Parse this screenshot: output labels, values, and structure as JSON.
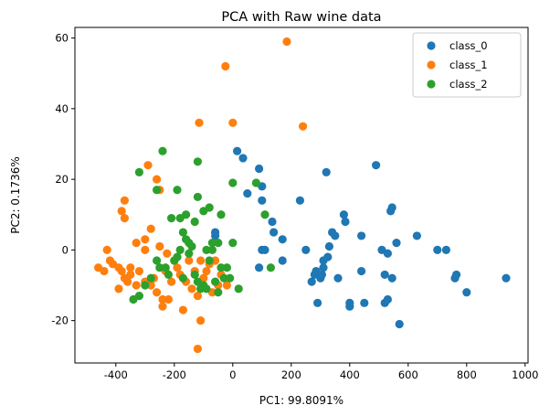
{
  "chart_data": {
    "type": "scatter",
    "title": "PCA with Raw wine data",
    "xlabel": "PC1: 99.8091%",
    "ylabel": "PC2: 0.1736%",
    "xlim": [
      -540,
      1010
    ],
    "ylim": [
      -32,
      63
    ],
    "xticks": [
      -400,
      -200,
      0,
      200,
      400,
      600,
      800,
      1000
    ],
    "yticks": [
      -20,
      0,
      20,
      40,
      60
    ],
    "grid": false,
    "legend": "top-right",
    "series": [
      {
        "name": "class_0",
        "color": "#1f77b4",
        "points": [
          [
            15,
            28
          ],
          [
            35,
            26
          ],
          [
            50,
            16
          ],
          [
            90,
            23
          ],
          [
            100,
            18
          ],
          [
            100,
            14
          ],
          [
            135,
            8
          ],
          [
            140,
            5
          ],
          [
            170,
            3
          ],
          [
            170,
            -3
          ],
          [
            230,
            14
          ],
          [
            250,
            0
          ],
          [
            270,
            -9
          ],
          [
            280,
            -7
          ],
          [
            285,
            -6
          ],
          [
            290,
            -15
          ],
          [
            300,
            -8
          ],
          [
            305,
            -7
          ],
          [
            310,
            -3
          ],
          [
            310,
            -5
          ],
          [
            320,
            22
          ],
          [
            325,
            -2
          ],
          [
            330,
            1
          ],
          [
            340,
            5
          ],
          [
            350,
            4
          ],
          [
            360,
            -8
          ],
          [
            380,
            10
          ],
          [
            385,
            8
          ],
          [
            400,
            -15
          ],
          [
            400,
            -16
          ],
          [
            440,
            4
          ],
          [
            440,
            -6
          ],
          [
            450,
            -15
          ],
          [
            490,
            24
          ],
          [
            510,
            0
          ],
          [
            520,
            -7
          ],
          [
            520,
            -15
          ],
          [
            530,
            -1
          ],
          [
            530,
            -14
          ],
          [
            540,
            11
          ],
          [
            545,
            12
          ],
          [
            545,
            -8
          ],
          [
            560,
            2
          ],
          [
            570,
            -21
          ],
          [
            630,
            4
          ],
          [
            700,
            0
          ],
          [
            730,
            0
          ],
          [
            760,
            -8
          ],
          [
            765,
            -7
          ],
          [
            800,
            -12
          ],
          [
            935,
            -8
          ],
          [
            90,
            -5
          ],
          [
            100,
            0
          ],
          [
            -60,
            5
          ],
          [
            -60,
            4
          ],
          [
            110,
            0
          ]
        ]
      },
      {
        "name": "class_1",
        "color": "#ff7f0e",
        "points": [
          [
            185,
            59
          ],
          [
            -25,
            52
          ],
          [
            240,
            35
          ],
          [
            0,
            36
          ],
          [
            -115,
            36
          ],
          [
            -370,
            14
          ],
          [
            -380,
            11
          ],
          [
            -370,
            9
          ],
          [
            -290,
            24
          ],
          [
            -260,
            20
          ],
          [
            -250,
            17
          ],
          [
            -330,
            2
          ],
          [
            -300,
            3
          ],
          [
            -280,
            6
          ],
          [
            -300,
            0
          ],
          [
            -250,
            1
          ],
          [
            -225,
            -1
          ],
          [
            -430,
            0
          ],
          [
            -420,
            -3
          ],
          [
            -460,
            -5
          ],
          [
            -410,
            -4
          ],
          [
            -440,
            -6
          ],
          [
            -390,
            -5
          ],
          [
            -380,
            -6
          ],
          [
            -370,
            -8
          ],
          [
            -350,
            -7
          ],
          [
            -320,
            -6
          ],
          [
            -300,
            -9
          ],
          [
            -280,
            -10
          ],
          [
            -260,
            -12
          ],
          [
            -240,
            -14
          ],
          [
            -240,
            -16
          ],
          [
            -220,
            -14
          ],
          [
            -200,
            -3
          ],
          [
            -190,
            -5
          ],
          [
            -180,
            -7
          ],
          [
            -160,
            -9
          ],
          [
            -140,
            -11
          ],
          [
            -120,
            -13
          ],
          [
            -100,
            -8
          ],
          [
            -90,
            -6
          ],
          [
            -80,
            -4
          ],
          [
            -60,
            -3
          ],
          [
            -40,
            -7
          ],
          [
            -20,
            -10
          ],
          [
            -170,
            -17
          ],
          [
            -110,
            -20
          ],
          [
            -120,
            -28
          ],
          [
            -210,
            -9
          ],
          [
            -230,
            -6
          ],
          [
            -150,
            -3
          ],
          [
            -130,
            -6
          ],
          [
            -110,
            -3
          ],
          [
            -70,
            -12
          ],
          [
            -50,
            -10
          ],
          [
            -390,
            -11
          ],
          [
            -360,
            -9
          ],
          [
            -330,
            -10
          ],
          [
            -270,
            -8
          ],
          [
            -350,
            -5
          ]
        ]
      },
      {
        "name": "class_2",
        "color": "#2ca02c",
        "points": [
          [
            -240,
            28
          ],
          [
            -120,
            25
          ],
          [
            -320,
            22
          ],
          [
            -260,
            17
          ],
          [
            -190,
            17
          ],
          [
            -120,
            15
          ],
          [
            -210,
            9
          ],
          [
            -180,
            9
          ],
          [
            -160,
            10
          ],
          [
            -130,
            8
          ],
          [
            -100,
            11
          ],
          [
            -80,
            12
          ],
          [
            -40,
            10
          ],
          [
            0,
            19
          ],
          [
            0,
            2
          ],
          [
            80,
            19
          ],
          [
            110,
            10
          ],
          [
            -170,
            5
          ],
          [
            -160,
            3
          ],
          [
            -150,
            2
          ],
          [
            -140,
            1
          ],
          [
            -90,
            0
          ],
          [
            -70,
            2
          ],
          [
            -50,
            2
          ],
          [
            -180,
            0
          ],
          [
            -200,
            -3
          ],
          [
            -220,
            -7
          ],
          [
            -250,
            -5
          ],
          [
            -280,
            -8
          ],
          [
            -300,
            -10
          ],
          [
            -320,
            -13
          ],
          [
            -340,
            -14
          ],
          [
            -170,
            -8
          ],
          [
            -130,
            -7
          ],
          [
            -120,
            -9
          ],
          [
            -110,
            -11
          ],
          [
            -100,
            -10
          ],
          [
            -90,
            -11
          ],
          [
            -60,
            -9
          ],
          [
            -50,
            -12
          ],
          [
            -30,
            -8
          ],
          [
            -20,
            -5
          ],
          [
            -10,
            -8
          ],
          [
            20,
            -11
          ],
          [
            130,
            -5
          ],
          [
            -70,
            0
          ],
          [
            -40,
            -5
          ],
          [
            -260,
            -3
          ],
          [
            -230,
            -5
          ],
          [
            -190,
            -2
          ],
          [
            -150,
            -1
          ],
          [
            -80,
            -3
          ]
        ]
      }
    ]
  }
}
